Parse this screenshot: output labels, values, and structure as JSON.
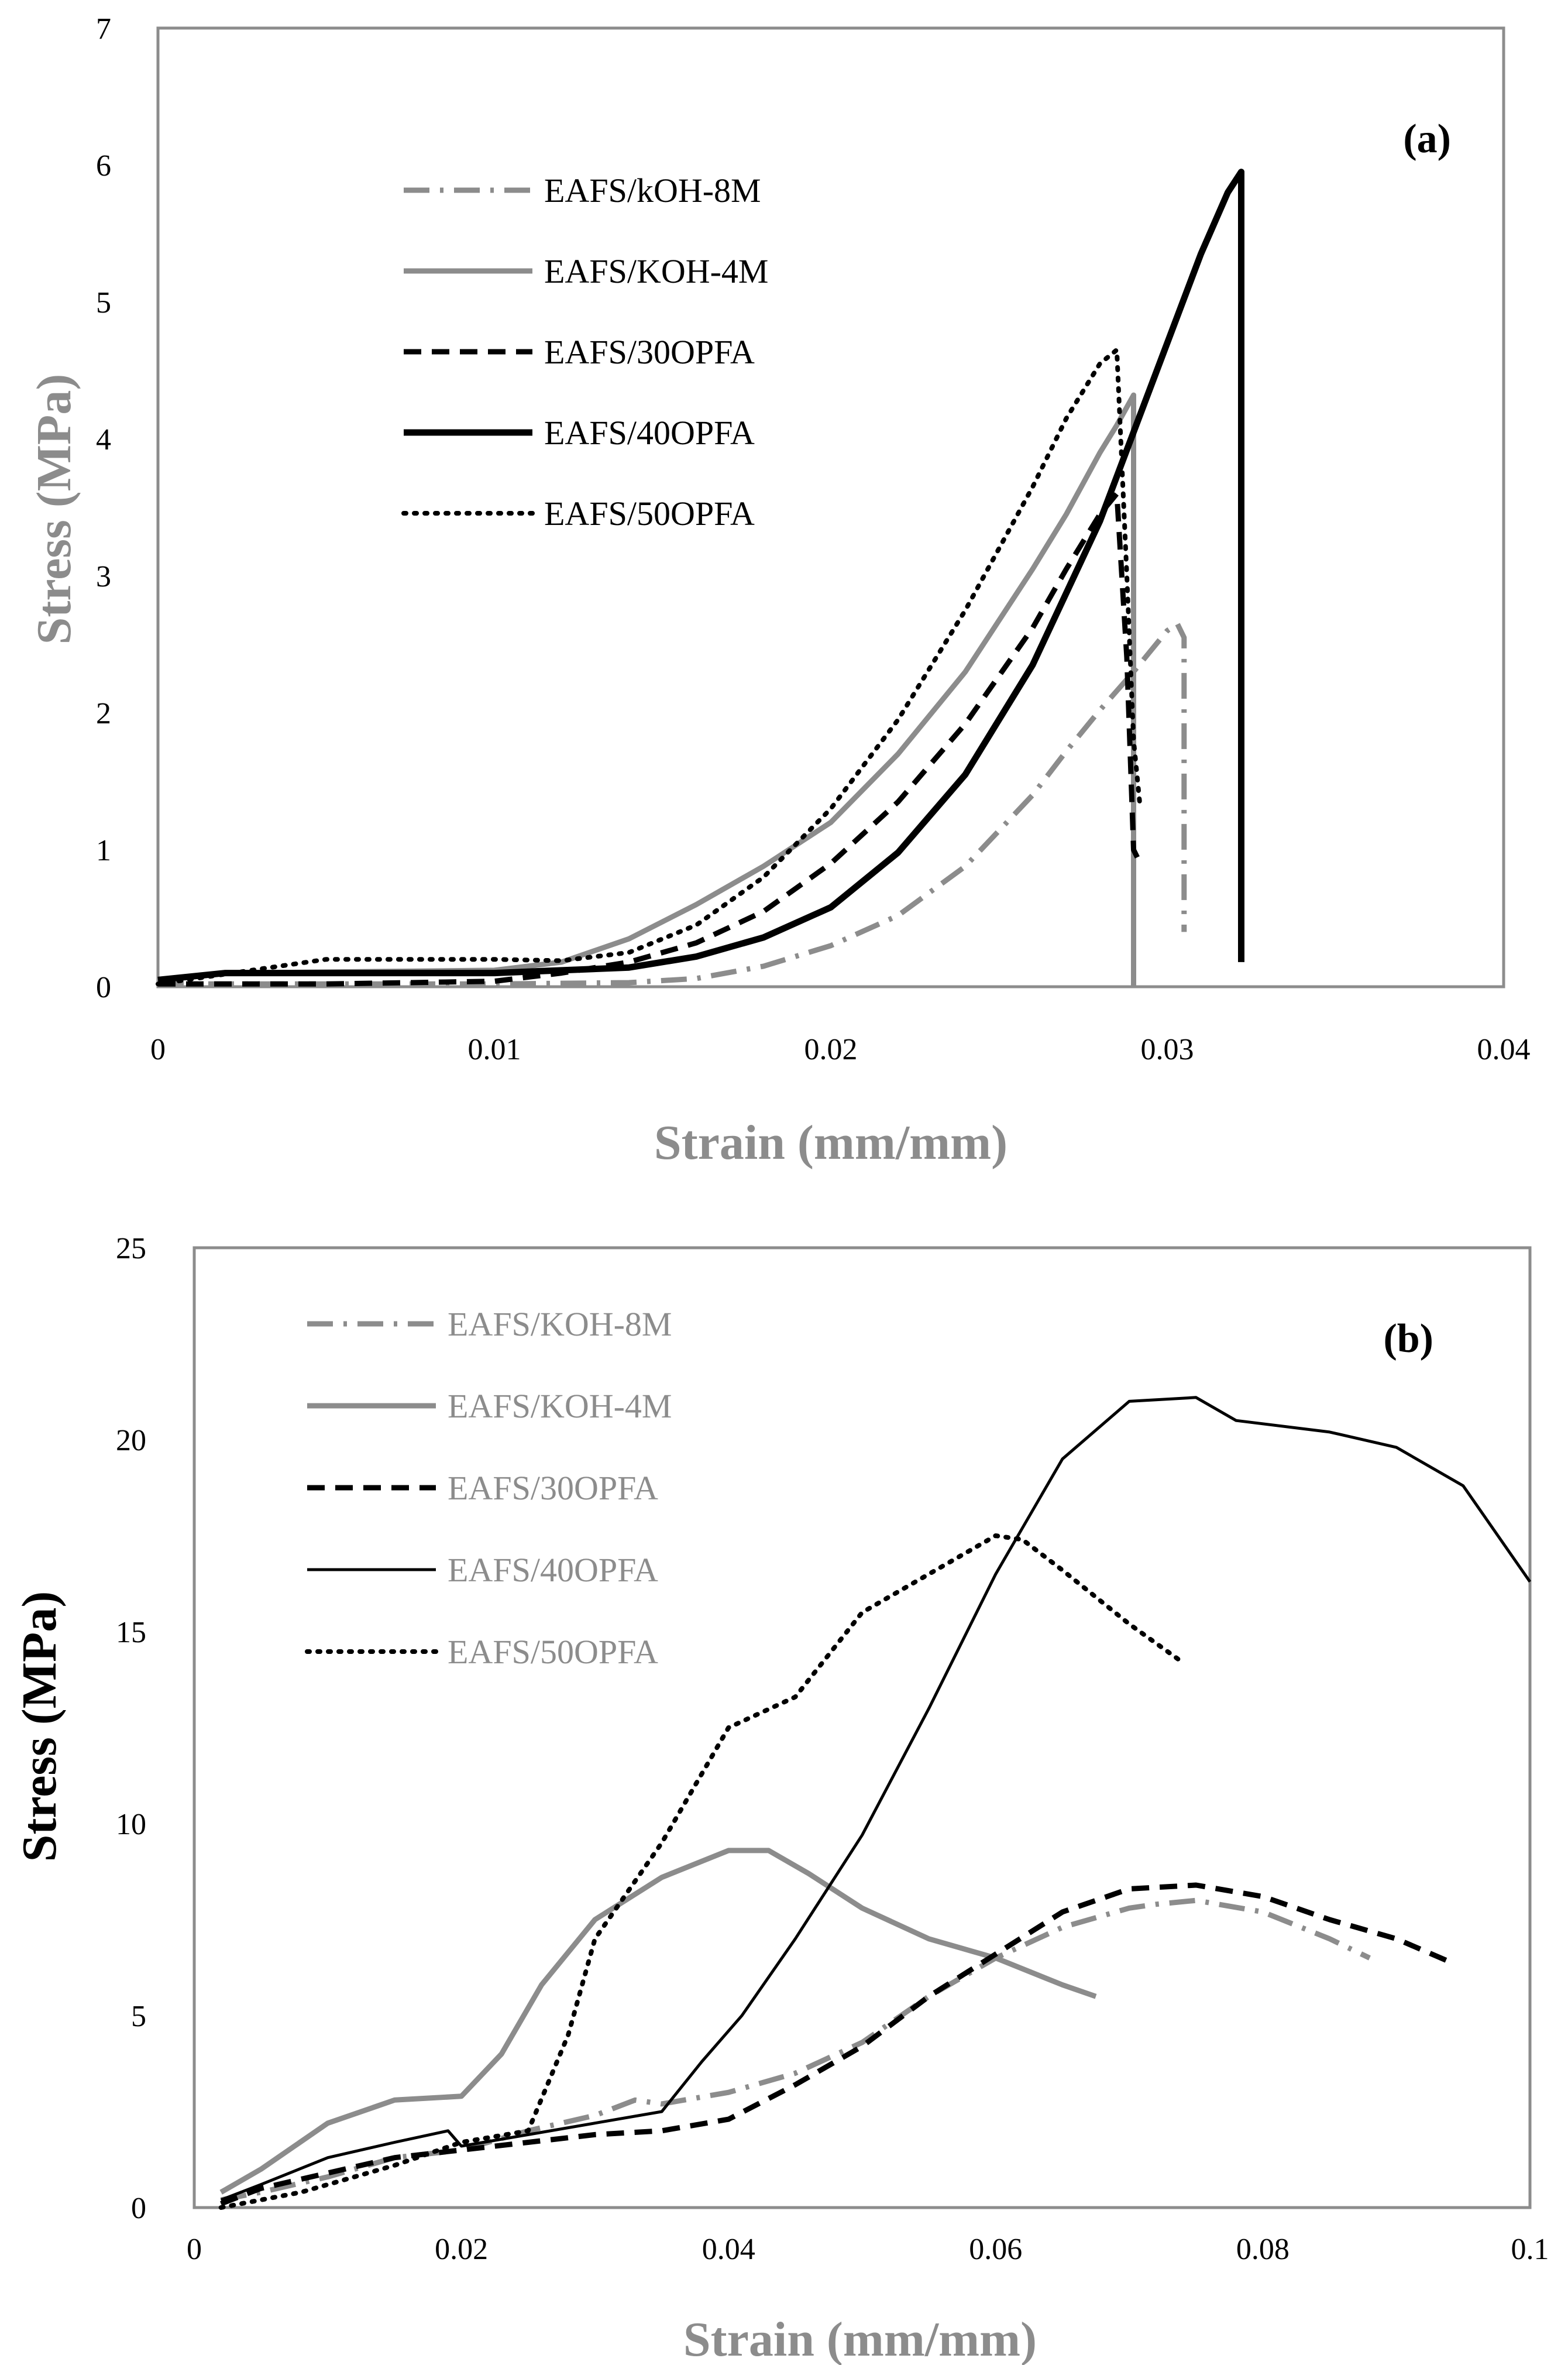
{
  "chart_data": [
    {
      "type": "line",
      "panel_label": "(a)",
      "xlabel": "Strain (mm/mm)",
      "ylabel": "Stress (MPa)",
      "xlim": [
        0,
        0.04
      ],
      "ylim": [
        0,
        7
      ],
      "x_ticks": [
        "0",
        "0.01",
        "0.02",
        "0.03",
        "0.04"
      ],
      "y_ticks": [
        "0",
        "1",
        "2",
        "3",
        "4",
        "5",
        "6",
        "7"
      ],
      "grid": false,
      "legend_position": "top-left",
      "series": [
        {
          "name": "EAFS/kOH-8M",
          "style": "dashdot",
          "color": "#8c8c8c",
          "x": [
            0,
            0.005,
            0.01,
            0.014,
            0.016,
            0.018,
            0.02,
            0.022,
            0.024,
            0.026,
            0.027,
            0.028,
            0.029,
            0.0295,
            0.03,
            0.0303,
            0.0305,
            0.0305,
            0.0305
          ],
          "y": [
            0.02,
            0.02,
            0.02,
            0.03,
            0.06,
            0.15,
            0.3,
            0.52,
            0.88,
            1.4,
            1.72,
            2.02,
            2.3,
            2.45,
            2.6,
            2.65,
            2.55,
            1.5,
            0.4
          ]
        },
        {
          "name": "EAFS/KOH-4M",
          "style": "solid",
          "color": "#8c8c8c",
          "x": [
            0,
            0.002,
            0.01,
            0.012,
            0.014,
            0.016,
            0.018,
            0.02,
            0.022,
            0.024,
            0.026,
            0.027,
            0.028,
            0.0285,
            0.029,
            0.029,
            0.029
          ],
          "y": [
            0.05,
            0.1,
            0.12,
            0.18,
            0.35,
            0.6,
            0.88,
            1.2,
            1.7,
            2.3,
            3.05,
            3.45,
            3.9,
            4.1,
            4.32,
            2.0,
            0.0
          ]
        },
        {
          "name": "EAFS/30OPFA",
          "style": "dash",
          "color": "#000000",
          "x": [
            0,
            0.005,
            0.01,
            0.012,
            0.014,
            0.016,
            0.018,
            0.02,
            0.022,
            0.024,
            0.026,
            0.027,
            0.028,
            0.0285,
            0.0288,
            0.029,
            0.0292
          ],
          "y": [
            0.02,
            0.02,
            0.04,
            0.1,
            0.18,
            0.32,
            0.55,
            0.9,
            1.35,
            1.92,
            2.62,
            3.05,
            3.45,
            3.6,
            2.4,
            1.0,
            0.9
          ]
        },
        {
          "name": "EAFS/40OPFA",
          "style": "solid-thick",
          "color": "#000000",
          "x": [
            0,
            0.002,
            0.01,
            0.014,
            0.016,
            0.018,
            0.02,
            0.022,
            0.024,
            0.026,
            0.028,
            0.029,
            0.03,
            0.031,
            0.0318,
            0.0322,
            0.0322,
            0.0322
          ],
          "y": [
            0.05,
            0.1,
            0.1,
            0.14,
            0.22,
            0.36,
            0.58,
            0.98,
            1.55,
            2.35,
            3.4,
            4.05,
            4.7,
            5.35,
            5.8,
            5.95,
            3.0,
            0.18
          ]
        },
        {
          "name": "EAFS/50OPFA",
          "style": "dot",
          "color": "#000000",
          "x": [
            0,
            0.005,
            0.01,
            0.012,
            0.014,
            0.016,
            0.018,
            0.02,
            0.022,
            0.024,
            0.026,
            0.027,
            0.028,
            0.0285,
            0.0288,
            0.029,
            0.0292
          ],
          "y": [
            0.02,
            0.2,
            0.2,
            0.19,
            0.25,
            0.45,
            0.8,
            1.3,
            1.95,
            2.75,
            3.65,
            4.15,
            4.55,
            4.65,
            3.0,
            1.8,
            1.3
          ]
        }
      ]
    },
    {
      "type": "line",
      "panel_label": "(b)",
      "xlabel": "Strain (mm/mm)",
      "ylabel": "Stress (MPa)",
      "xlim": [
        0,
        0.1
      ],
      "ylim": [
        0,
        25
      ],
      "x_ticks": [
        "0",
        "0.02",
        "0.04",
        "0.06",
        "0.08",
        "0.1"
      ],
      "y_ticks": [
        "0",
        "5",
        "10",
        "15",
        "20",
        "25"
      ],
      "grid": false,
      "legend_position": "top-left",
      "series": [
        {
          "name": "EAFS/KOH-8M",
          "style": "dashdot",
          "color": "#8c8c8c",
          "x": [
            0.002,
            0.005,
            0.01,
            0.015,
            0.02,
            0.025,
            0.03,
            0.033,
            0.035,
            0.04,
            0.045,
            0.05,
            0.055,
            0.06,
            0.065,
            0.07,
            0.072,
            0.075,
            0.08,
            0.085,
            0.088
          ],
          "y": [
            0.2,
            0.4,
            0.8,
            1.3,
            1.5,
            2.0,
            2.4,
            2.8,
            2.7,
            3.0,
            3.5,
            4.3,
            5.5,
            6.5,
            7.3,
            7.8,
            7.9,
            8.0,
            7.7,
            7.0,
            6.5
          ]
        },
        {
          "name": "EAFS/KOH-4M",
          "style": "solid",
          "color": "#8c8c8c",
          "x": [
            0.002,
            0.005,
            0.01,
            0.015,
            0.02,
            0.023,
            0.026,
            0.03,
            0.035,
            0.04,
            0.043,
            0.046,
            0.05,
            0.055,
            0.06,
            0.065,
            0.0675
          ],
          "y": [
            0.4,
            1.0,
            2.2,
            2.8,
            2.9,
            4.0,
            5.8,
            7.5,
            8.6,
            9.3,
            9.3,
            8.7,
            7.8,
            7.0,
            6.5,
            5.8,
            5.5
          ]
        },
        {
          "name": "EAFS/30OPFA",
          "style": "dash",
          "color": "#000000",
          "x": [
            0.002,
            0.005,
            0.01,
            0.015,
            0.02,
            0.025,
            0.03,
            0.035,
            0.04,
            0.045,
            0.05,
            0.055,
            0.06,
            0.065,
            0.07,
            0.075,
            0.08,
            0.085,
            0.09,
            0.094
          ],
          "y": [
            0.1,
            0.5,
            0.9,
            1.3,
            1.5,
            1.7,
            1.9,
            2.0,
            2.3,
            3.2,
            4.2,
            5.5,
            6.6,
            7.7,
            8.3,
            8.4,
            8.1,
            7.5,
            7.0,
            6.4
          ]
        },
        {
          "name": "EAFS/40OPFA",
          "style": "solid-thin",
          "color": "#000000",
          "x": [
            0.002,
            0.005,
            0.01,
            0.015,
            0.019,
            0.02,
            0.025,
            0.03,
            0.035,
            0.038,
            0.041,
            0.045,
            0.05,
            0.055,
            0.06,
            0.065,
            0.07,
            0.075,
            0.078,
            0.085,
            0.09,
            0.095,
            0.1
          ],
          "y": [
            0.2,
            0.6,
            1.3,
            1.7,
            2.0,
            1.6,
            1.9,
            2.2,
            2.5,
            3.8,
            5.0,
            7.0,
            9.7,
            13.0,
            16.5,
            19.5,
            21.0,
            21.1,
            20.5,
            20.2,
            19.8,
            18.8,
            16.3
          ]
        },
        {
          "name": "EAFS/50OPFA",
          "style": "dot",
          "color": "#000000",
          "x": [
            0.002,
            0.008,
            0.015,
            0.02,
            0.025,
            0.028,
            0.03,
            0.035,
            0.04,
            0.045,
            0.05,
            0.055,
            0.06,
            0.062,
            0.065,
            0.07,
            0.074
          ],
          "y": [
            0.0,
            0.4,
            1.1,
            1.7,
            2.0,
            4.5,
            7.0,
            9.5,
            12.5,
            13.3,
            15.5,
            16.5,
            17.5,
            17.4,
            16.6,
            15.2,
            14.2
          ]
        }
      ]
    }
  ]
}
